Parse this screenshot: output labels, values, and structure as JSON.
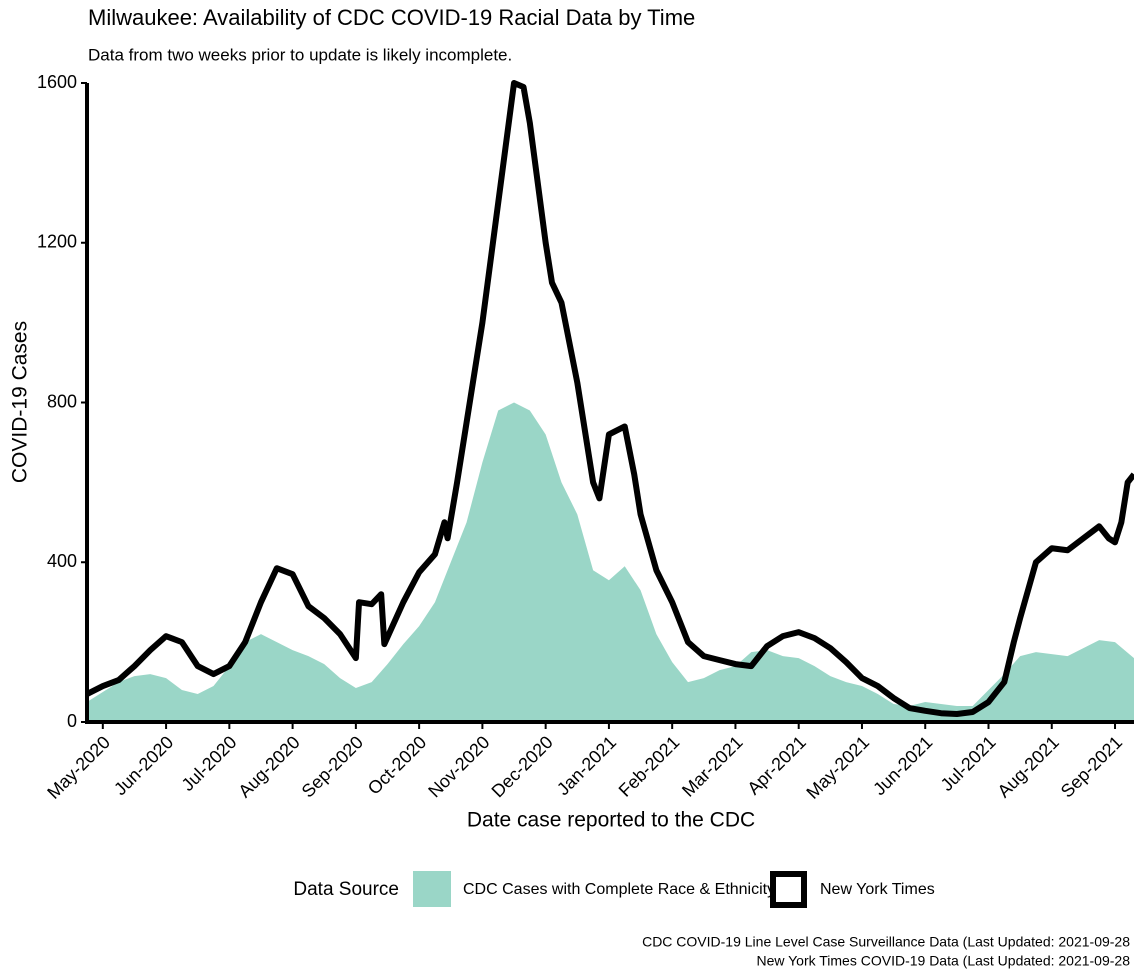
{
  "chart_data": {
    "type": "line",
    "title": "Milwaukee: Availability of CDC COVID-19 Racial Data by Time",
    "subtitle": "Data from two weeks prior to update is likely incomplete.",
    "x_label": "Date case reported to the CDC",
    "y_label": "COVID-19 Cases",
    "legend_title": "Data Source",
    "footnotes": [
      "CDC COVID-19 Line Level Case Surveillance Data (Last Updated: 2021-09-28",
      "New York Times COVID-19 Data (Last Updated: 2021-09-28"
    ],
    "xlim": [
      3.75,
      20.3
    ],
    "xticks": [
      {
        "value": 4,
        "label": "May-2020"
      },
      {
        "value": 5,
        "label": "Jun-2020"
      },
      {
        "value": 6,
        "label": "Jul-2020"
      },
      {
        "value": 7,
        "label": "Aug-2020"
      },
      {
        "value": 8,
        "label": "Sep-2020"
      },
      {
        "value": 9,
        "label": "Oct-2020"
      },
      {
        "value": 10,
        "label": "Nov-2020"
      },
      {
        "value": 11,
        "label": "Dec-2020"
      },
      {
        "value": 12,
        "label": "Jan-2021"
      },
      {
        "value": 13,
        "label": "Feb-2021"
      },
      {
        "value": 14,
        "label": "Mar-2021"
      },
      {
        "value": 15,
        "label": "Apr-2021"
      },
      {
        "value": 16,
        "label": "May-2021"
      },
      {
        "value": 17,
        "label": "Jun-2021"
      },
      {
        "value": 18,
        "label": "Jul-2021"
      },
      {
        "value": 19,
        "label": "Aug-2021"
      },
      {
        "value": 20,
        "label": "Sep-2021"
      }
    ],
    "ylim": [
      0,
      1600
    ],
    "yticks": [
      0,
      400,
      800,
      1200,
      1600
    ],
    "series": [
      {
        "name": "CDC Cases with Complete Race & Ethnicity",
        "color": "#9ad6c7",
        "style": "area",
        "x": [
          3.75,
          4,
          4.25,
          4.5,
          4.75,
          5,
          5.25,
          5.5,
          5.75,
          6,
          6.25,
          6.5,
          6.75,
          7,
          7.25,
          7.5,
          7.75,
          8,
          8.25,
          8.5,
          8.75,
          9,
          9.25,
          9.5,
          9.75,
          10,
          10.25,
          10.5,
          10.75,
          11,
          11.25,
          11.5,
          11.75,
          12,
          12.25,
          12.5,
          12.75,
          13,
          13.25,
          13.5,
          13.75,
          14,
          14.25,
          14.5,
          14.75,
          15,
          15.25,
          15.5,
          15.75,
          16,
          16.25,
          16.5,
          16.75,
          17,
          17.25,
          17.5,
          17.75,
          18,
          18.25,
          18.5,
          18.75,
          19,
          19.25,
          19.5,
          19.75,
          20,
          20.3
        ],
        "values": [
          50,
          75,
          100,
          115,
          120,
          110,
          80,
          70,
          90,
          140,
          200,
          220,
          200,
          180,
          165,
          145,
          110,
          85,
          100,
          145,
          195,
          240,
          300,
          400,
          500,
          650,
          780,
          800,
          780,
          720,
          600,
          520,
          380,
          355,
          390,
          330,
          220,
          150,
          100,
          110,
          130,
          140,
          175,
          180,
          165,
          160,
          140,
          115,
          100,
          90,
          70,
          45,
          40,
          50,
          45,
          40,
          40,
          80,
          120,
          165,
          175,
          170,
          165,
          185,
          205,
          200,
          160
        ]
      },
      {
        "name": "New York Times",
        "color": "#000000",
        "style": "line",
        "x": [
          3.75,
          4,
          4.25,
          4.5,
          4.75,
          5,
          5.25,
          5.5,
          5.75,
          6,
          6.25,
          6.5,
          6.75,
          7,
          7.25,
          7.5,
          7.75,
          8,
          8.05,
          8.25,
          8.4,
          8.45,
          8.75,
          9,
          9.25,
          9.4,
          9.45,
          9.6,
          9.75,
          10,
          10.25,
          10.5,
          10.65,
          10.75,
          11,
          11.1,
          11.25,
          11.5,
          11.75,
          11.85,
          12,
          12.25,
          12.4,
          12.5,
          12.75,
          13,
          13.25,
          13.5,
          13.75,
          14,
          14.25,
          14.5,
          14.75,
          15,
          15.25,
          15.5,
          15.75,
          16,
          16.25,
          16.5,
          16.75,
          17,
          17.25,
          17.5,
          17.75,
          18,
          18.25,
          18.4,
          18.5,
          18.75,
          19,
          19.25,
          19.5,
          19.75,
          19.9,
          20,
          20.1,
          20.2,
          20.3
        ],
        "values": [
          70,
          90,
          105,
          140,
          180,
          215,
          200,
          140,
          120,
          140,
          200,
          300,
          385,
          370,
          290,
          260,
          220,
          160,
          300,
          295,
          320,
          195,
          300,
          375,
          420,
          500,
          460,
          600,
          750,
          1000,
          1300,
          1600,
          1590,
          1500,
          1200,
          1100,
          1050,
          850,
          600,
          560,
          720,
          740,
          620,
          520,
          380,
          300,
          200,
          165,
          155,
          145,
          140,
          190,
          215,
          225,
          210,
          185,
          150,
          110,
          90,
          60,
          35,
          28,
          22,
          20,
          25,
          50,
          100,
          200,
          260,
          400,
          435,
          430,
          460,
          490,
          460,
          450,
          500,
          600,
          620
        ]
      }
    ]
  }
}
